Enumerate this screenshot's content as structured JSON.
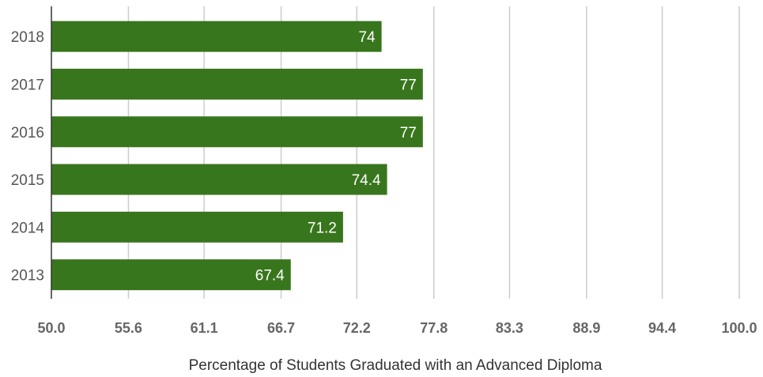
{
  "chart_data": {
    "type": "bar",
    "orientation": "horizontal",
    "categories": [
      "2018",
      "2017",
      "2016",
      "2015",
      "2014",
      "2013"
    ],
    "values": [
      74,
      77,
      77,
      74.4,
      71.2,
      67.4
    ],
    "value_labels": [
      "74",
      "77",
      "77",
      "74.4",
      "71.2",
      "67.4"
    ],
    "xticks": [
      "50.0",
      "55.6",
      "61.1",
      "66.7",
      "72.2",
      "77.8",
      "83.3",
      "88.9",
      "94.4",
      "100.0"
    ],
    "xlim": [
      50,
      100
    ],
    "xlabel": "Percentage of Students Graduated with an Advanced Diploma",
    "ylabel": "",
    "title": "",
    "grid": true,
    "bar_color": "#38761d"
  }
}
